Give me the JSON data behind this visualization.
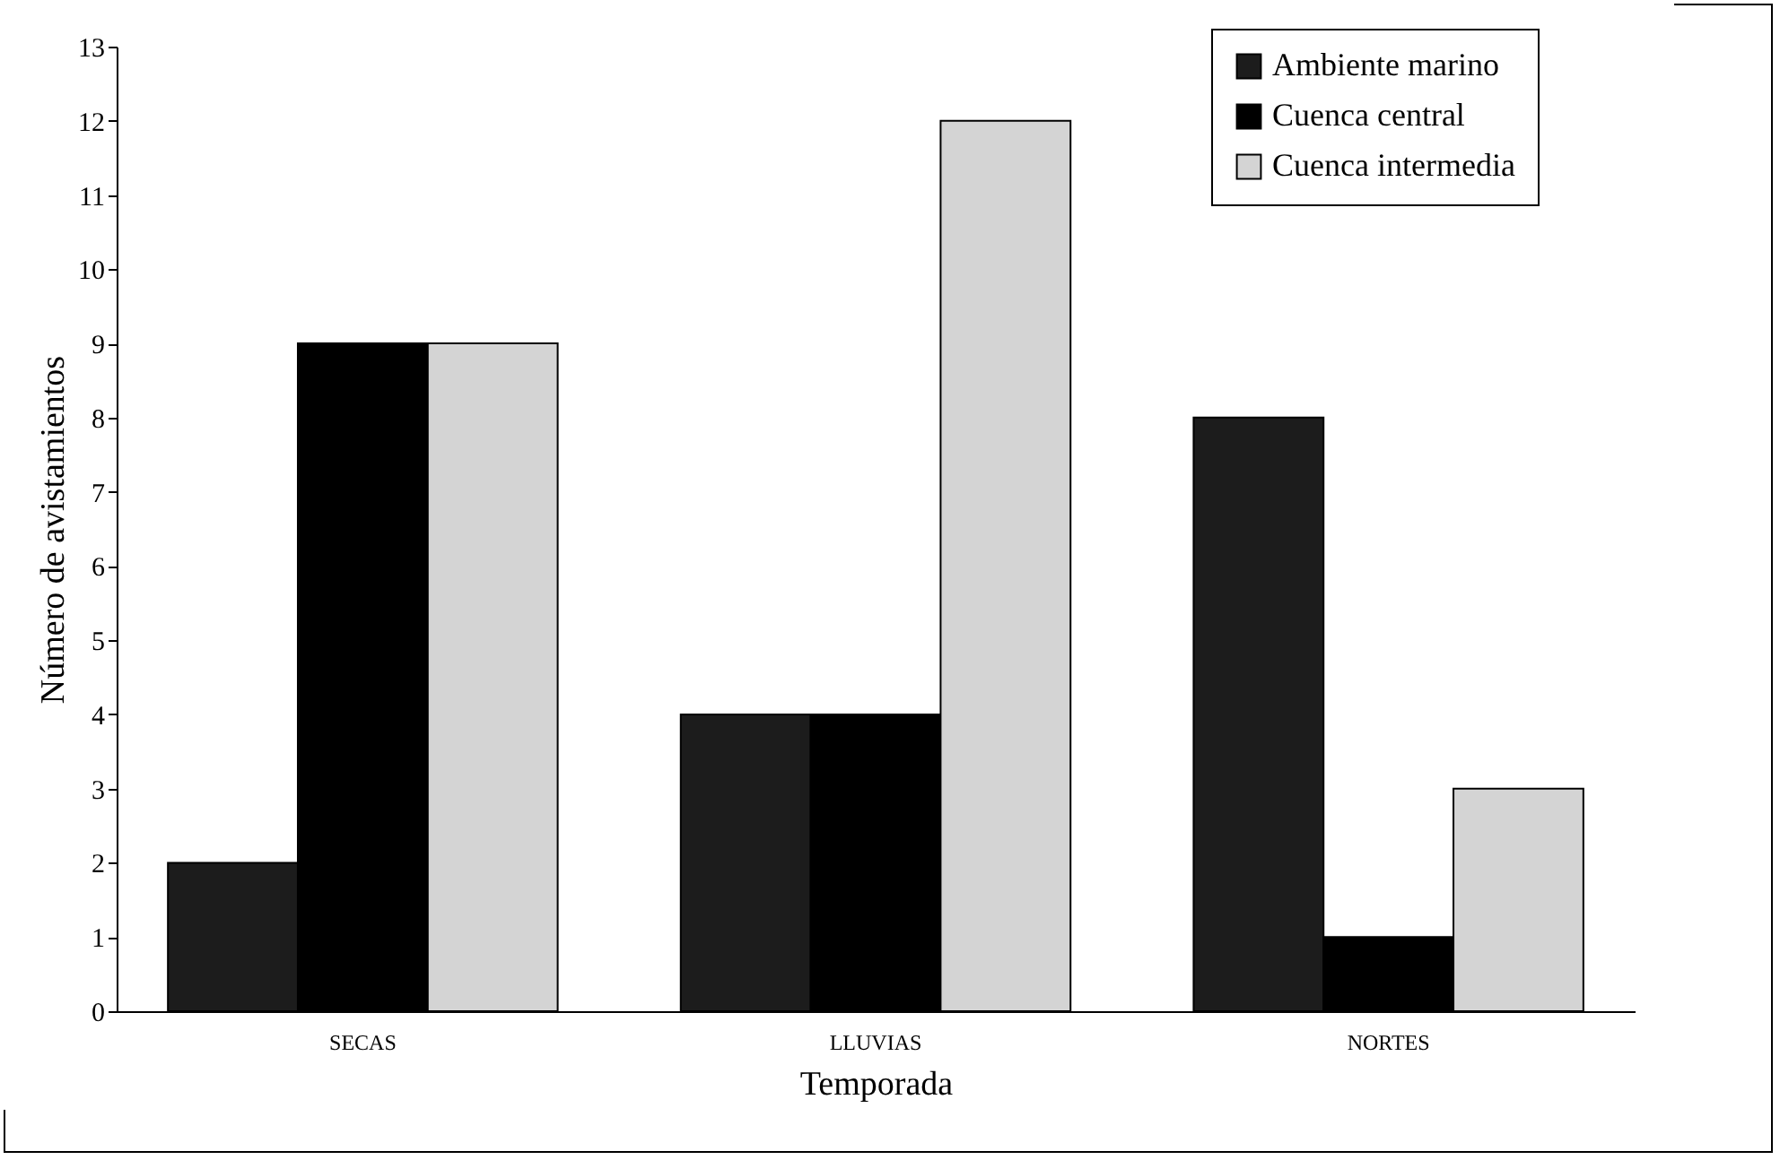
{
  "chart_data": {
    "type": "bar",
    "xlabel": "Temporada",
    "ylabel": "Número de avistamientos",
    "categories": [
      "SECAS",
      "LLUVIAS",
      "NORTES"
    ],
    "series": [
      {
        "name": "Ambiente marino",
        "color": "#1c1c1c",
        "values": [
          2,
          4,
          8
        ]
      },
      {
        "name": "Cuenca central",
        "color": "#000000",
        "values": [
          9,
          4,
          1
        ]
      },
      {
        "name": "Cuenca intermedia",
        "color": "#d4d4d4",
        "values": [
          9,
          12,
          3
        ]
      }
    ],
    "ylim": [
      0,
      13
    ],
    "yticks": [
      0,
      1,
      2,
      3,
      4,
      5,
      6,
      7,
      8,
      9,
      10,
      11,
      12,
      13
    ],
    "grid": false,
    "legend": "top right"
  }
}
